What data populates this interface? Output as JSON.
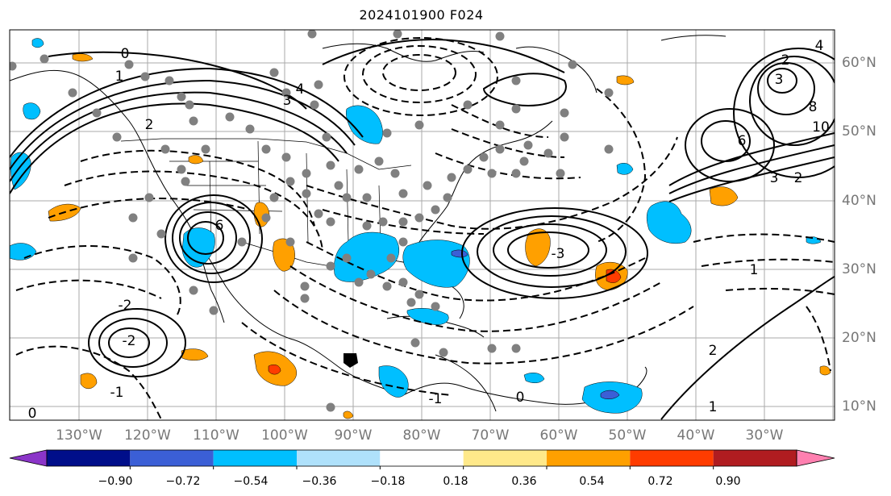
{
  "title": "2024101900 F024",
  "lon_labels": [
    "130°W",
    "120°W",
    "110°W",
    "100°W",
    "90°W",
    "80°W",
    "70°W",
    "60°W",
    "50°W",
    "40°W",
    "30°W"
  ],
  "lat_labels": [
    "60°N",
    "50°N",
    "40°N",
    "30°N",
    "20°N",
    "10°N"
  ],
  "colorbar": {
    "ticks": [
      "−0.90",
      "−0.72",
      "−0.54",
      "−0.36",
      "−0.18",
      "0.18",
      "0.36",
      "0.54",
      "0.72",
      "0.90"
    ],
    "colors": [
      "#8b35c8",
      "#000e8a",
      "#3b5fd6",
      "#00bfff",
      "#afe1fb",
      "#ffffff",
      "#ffe98a",
      "#ffa000",
      "#ff3c00",
      "#b01c20",
      "#ff80b0"
    ]
  },
  "contour_labels": [
    "0",
    "1",
    "2",
    "3",
    "4",
    "6",
    "-1",
    "-2",
    "-3",
    "0",
    "2",
    "3",
    "8",
    "10",
    "6",
    "4",
    "3",
    "2",
    "1",
    "0",
    "-1",
    "-2",
    "1",
    "2"
  ],
  "colors": {
    "grid": "#aaaaaa",
    "label": "#777777",
    "contour": "#000000",
    "dot": "#808080"
  }
}
